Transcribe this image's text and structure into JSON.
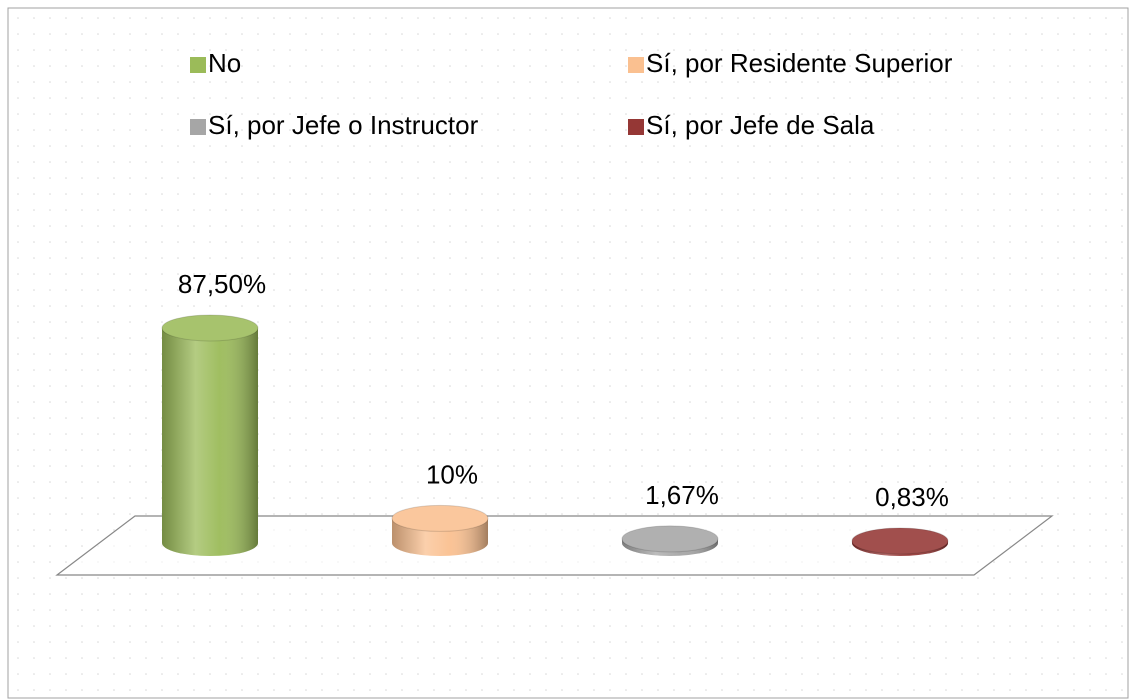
{
  "chart_data": {
    "type": "bar3d",
    "series": [
      {
        "name": "No",
        "color": "#9bbb59",
        "values": [
          87.5
        ],
        "value_labels": [
          "87,50%"
        ]
      },
      {
        "name": "Sí, por Residente Superior",
        "color": "#fac090",
        "values": [
          10
        ],
        "value_labels": [
          "10%"
        ]
      },
      {
        "name": "Sí, por Jefe o Instructor",
        "color": "#a6a6a6",
        "values": [
          1.67
        ],
        "value_labels": [
          "1,67%"
        ]
      },
      {
        "name": "Sí, por Jefe de Sala",
        "color": "#953735",
        "values": [
          0.83
        ],
        "value_labels": [
          "0,83%"
        ]
      }
    ]
  }
}
